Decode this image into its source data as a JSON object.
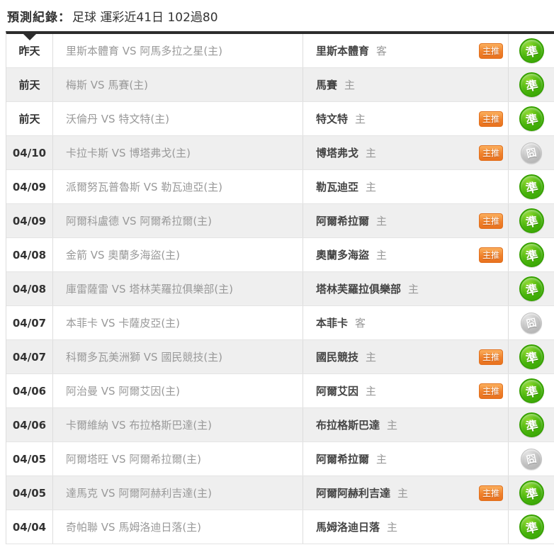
{
  "header": {
    "title_label": "預測紀錄：",
    "title_value": "足球 運彩近41日 102過80"
  },
  "labels": {
    "promoted_badge": "主推",
    "hit": "準",
    "miss": "囧"
  },
  "colors": {
    "hit_green": "#46b309",
    "miss_gray": "#bdbdbd",
    "badge_orange": "#f0812c",
    "stripe_gray": "#efefef",
    "top_border_dark": "#2c2c2c"
  },
  "table": {
    "rows": [
      {
        "date": "昨天",
        "match": "里斯本體育 VS 阿馬多拉之星(主)",
        "prediction": "里斯本體育",
        "venue": "客",
        "promoted": true,
        "result": "hit"
      },
      {
        "date": "前天",
        "match": "梅斯 VS 馬賽(主)",
        "prediction": "馬賽",
        "venue": "主",
        "promoted": false,
        "result": "hit"
      },
      {
        "date": "前天",
        "match": "沃倫丹 VS 特文特(主)",
        "prediction": "特文特",
        "venue": "主",
        "promoted": true,
        "result": "hit"
      },
      {
        "date": "04/10",
        "match": "卡拉卡斯 VS 博塔弗戈(主)",
        "prediction": "博塔弗戈",
        "venue": "主",
        "promoted": true,
        "result": "miss"
      },
      {
        "date": "04/09",
        "match": "派爾努瓦普魯斯 VS 勒瓦迪亞(主)",
        "prediction": "勒瓦迪亞",
        "venue": "主",
        "promoted": false,
        "result": "hit"
      },
      {
        "date": "04/09",
        "match": "阿爾科盧德 VS 阿爾希拉爾(主)",
        "prediction": "阿爾希拉爾",
        "venue": "主",
        "promoted": true,
        "result": "hit"
      },
      {
        "date": "04/08",
        "match": "金箭 VS 奧蘭多海盜(主)",
        "prediction": "奧蘭多海盜",
        "venue": "主",
        "promoted": true,
        "result": "hit"
      },
      {
        "date": "04/08",
        "match": "庫雷薩雷 VS 塔林芙羅拉俱樂部(主)",
        "prediction": "塔林芙羅拉俱樂部",
        "venue": "主",
        "promoted": false,
        "result": "hit"
      },
      {
        "date": "04/07",
        "match": "本菲卡 VS 卡薩皮亞(主)",
        "prediction": "本菲卡",
        "venue": "客",
        "promoted": false,
        "result": "miss"
      },
      {
        "date": "04/07",
        "match": "科爾多瓦美洲獅 VS 國民競技(主)",
        "prediction": "國民競技",
        "venue": "主",
        "promoted": true,
        "result": "hit"
      },
      {
        "date": "04/06",
        "match": "阿治曼 VS 阿爾艾因(主)",
        "prediction": "阿爾艾因",
        "venue": "主",
        "promoted": true,
        "result": "hit"
      },
      {
        "date": "04/06",
        "match": "卡爾維納 VS 布拉格斯巴達(主)",
        "prediction": "布拉格斯巴達",
        "venue": "主",
        "promoted": false,
        "result": "hit"
      },
      {
        "date": "04/05",
        "match": "阿爾塔旺 VS 阿爾希拉爾(主)",
        "prediction": "阿爾希拉爾",
        "venue": "主",
        "promoted": false,
        "result": "miss"
      },
      {
        "date": "04/05",
        "match": "達馬克 VS 阿爾阿赫利吉達(主)",
        "prediction": "阿爾阿赫利吉達",
        "venue": "主",
        "promoted": true,
        "result": "hit"
      },
      {
        "date": "04/04",
        "match": "奇帕聯 VS 馬姆洛迪日落(主)",
        "prediction": "馬姆洛迪日落",
        "venue": "主",
        "promoted": false,
        "result": "hit"
      }
    ]
  }
}
